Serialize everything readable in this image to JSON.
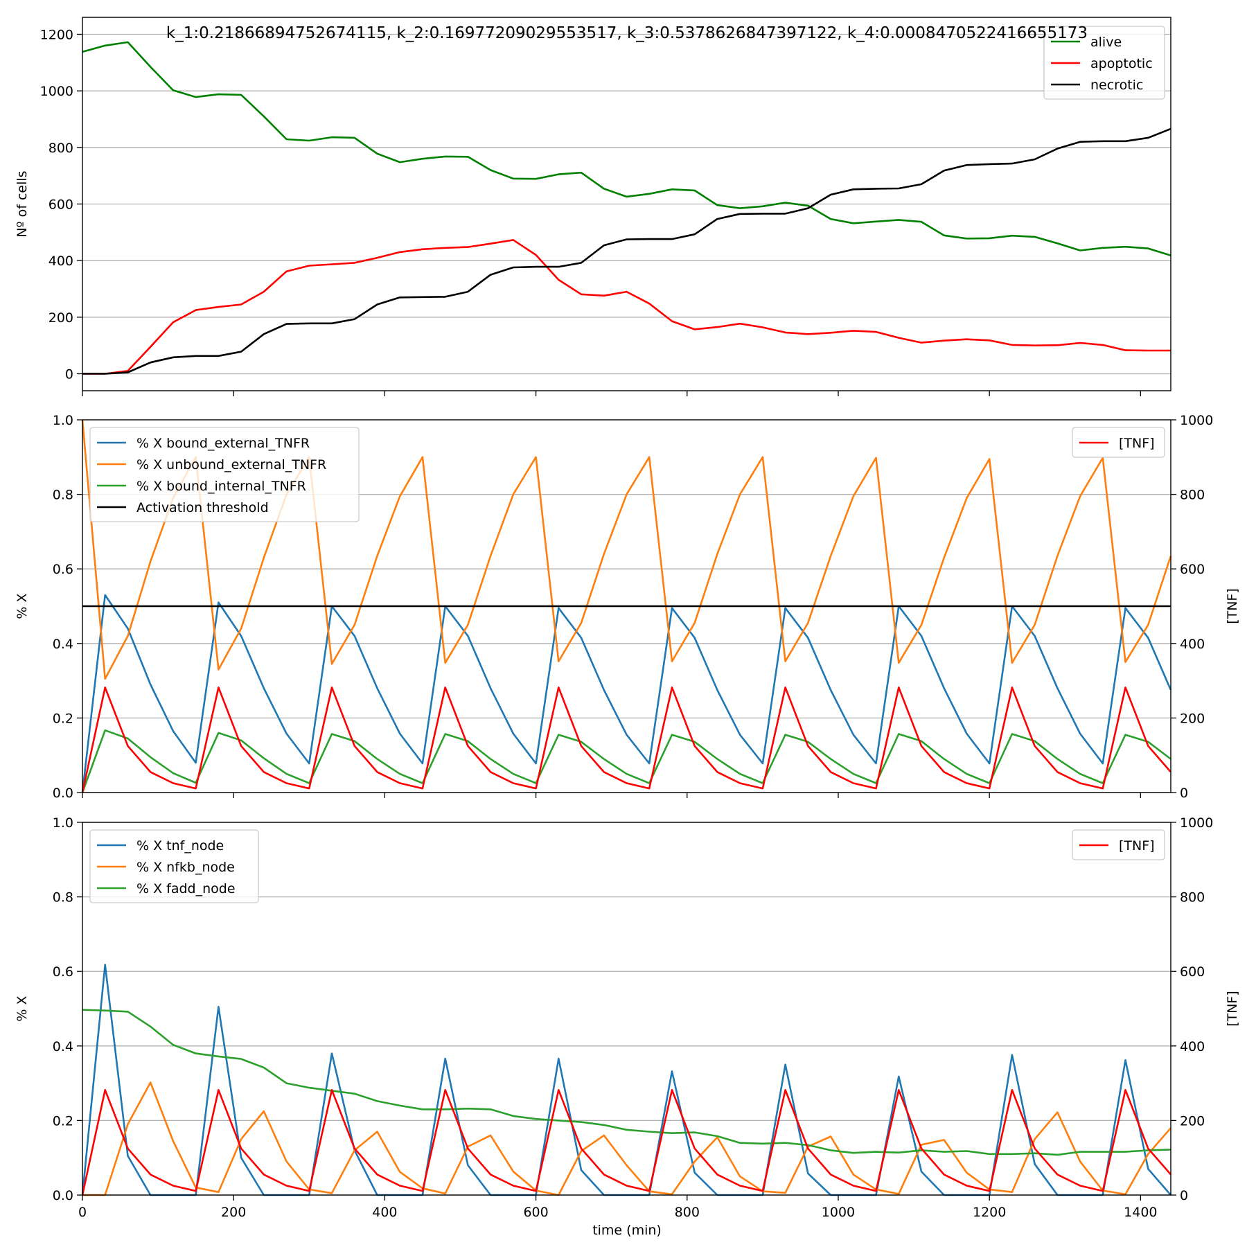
{
  "figure": {
    "suptitle": "k_1:0.21866894752674115, k_2:0.16977209029553517, k_3:0.5378626847397122, k_4:0.0008470522416655173",
    "xlabel": "time (min)",
    "x_ticks": [
      0,
      200,
      400,
      600,
      800,
      1000,
      1200,
      1400
    ],
    "xlim": [
      0,
      1440
    ]
  },
  "colors": {
    "alive": "#008000",
    "apoptotic": "#ff0000",
    "necrotic": "#000000",
    "blue": "#1f77b4",
    "orange": "#ff7f0e",
    "green": "#2ca02c",
    "tnf": "#ff0000",
    "grid": "#b0b0b0"
  },
  "chart_data": [
    {
      "type": "line",
      "ylabel": "Nº of cells",
      "ylim": [
        -60,
        1260
      ],
      "y_ticks": [
        0,
        200,
        400,
        600,
        800,
        1000,
        1200
      ],
      "grid": "y",
      "legend_position": "top-right",
      "x": [
        0,
        30,
        60,
        90,
        120,
        150,
        180,
        210,
        240,
        270,
        300,
        330,
        360,
        390,
        420,
        450,
        480,
        510,
        540,
        570,
        600,
        630,
        660,
        690,
        720,
        750,
        780,
        810,
        840,
        870,
        900,
        930,
        960,
        990,
        1020,
        1050,
        1080,
        1110,
        1140,
        1170,
        1200,
        1230,
        1260,
        1290,
        1320,
        1350,
        1380,
        1410,
        1440
      ],
      "series": [
        {
          "name": "alive",
          "color_key": "alive",
          "values": [
            1138,
            1160,
            1172,
            1085,
            1002,
            978,
            988,
            986,
            910,
            829,
            824,
            836,
            834,
            778,
            748,
            760,
            768,
            767,
            720,
            690,
            689,
            705,
            711,
            654,
            626,
            636,
            652,
            648,
            596,
            585,
            592,
            605,
            594,
            547,
            532,
            538,
            544,
            537,
            489,
            478,
            479,
            488,
            484,
            461,
            436,
            445,
            449,
            443,
            418
          ]
        },
        {
          "name": "apoptotic",
          "color_key": "apoptotic",
          "values": [
            0,
            0,
            10,
            95,
            182,
            225,
            236,
            245,
            290,
            362,
            382,
            387,
            392,
            410,
            430,
            440,
            445,
            448,
            460,
            473,
            420,
            332,
            281,
            276,
            290,
            248,
            186,
            157,
            165,
            177,
            164,
            146,
            140,
            145,
            152,
            148,
            127,
            110,
            117,
            122,
            118,
            102,
            100,
            101,
            109,
            102,
            83,
            82,
            82
          ]
        },
        {
          "name": "necrotic",
          "color_key": "necrotic",
          "values": [
            0,
            0,
            5,
            40,
            58,
            63,
            63,
            78,
            140,
            176,
            178,
            178,
            193,
            245,
            270,
            271,
            272,
            290,
            350,
            376,
            378,
            378,
            392,
            454,
            475,
            476,
            476,
            493,
            547,
            565,
            566,
            566,
            585,
            633,
            652,
            654,
            655,
            670,
            718,
            738,
            741,
            743,
            758,
            796,
            820,
            822,
            822,
            834,
            866
          ]
        }
      ]
    },
    {
      "type": "line",
      "ylabel": "% X",
      "y2label": "[TNF]",
      "ylim": [
        0,
        1
      ],
      "y2lim": [
        0,
        1000
      ],
      "y_ticks": [
        0.0,
        0.2,
        0.4,
        0.6,
        0.8,
        1.0
      ],
      "y_tick_labels": [
        "0.0",
        "0.2",
        "0.4",
        "0.6",
        "0.8",
        "1.0"
      ],
      "y2_ticks": [
        0,
        200,
        400,
        600,
        800,
        1000
      ],
      "grid": "y",
      "legend_position": "top-left",
      "legend2_position": "top-right",
      "x": [
        0,
        30,
        60,
        90,
        120,
        150,
        180,
        210,
        240,
        270,
        300,
        330,
        360,
        390,
        420,
        450,
        480,
        510,
        540,
        570,
        600,
        630,
        660,
        690,
        720,
        750,
        780,
        810,
        840,
        870,
        900,
        930,
        960,
        990,
        1020,
        1050,
        1080,
        1110,
        1140,
        1170,
        1200,
        1230,
        1260,
        1290,
        1320,
        1350,
        1380,
        1410,
        1440
      ],
      "series": [
        {
          "name": "% X bound_external_TNFR",
          "color_key": "blue",
          "axis": "left",
          "values": [
            0,
            0.53,
            0.44,
            0.29,
            0.165,
            0.08,
            0.51,
            0.42,
            0.28,
            0.158,
            0.078,
            0.5,
            0.42,
            0.28,
            0.158,
            0.078,
            0.5,
            0.42,
            0.28,
            0.158,
            0.078,
            0.495,
            0.415,
            0.275,
            0.155,
            0.078,
            0.495,
            0.415,
            0.275,
            0.155,
            0.078,
            0.495,
            0.415,
            0.275,
            0.155,
            0.078,
            0.5,
            0.42,
            0.28,
            0.158,
            0.078,
            0.5,
            0.42,
            0.28,
            0.158,
            0.078,
            0.495,
            0.415,
            0.275
          ]
        },
        {
          "name": "% X unbound_external_TNFR",
          "color_key": "orange",
          "axis": "left",
          "values": [
            1.0,
            0.305,
            0.42,
            0.62,
            0.79,
            0.9,
            0.33,
            0.44,
            0.63,
            0.8,
            0.9,
            0.345,
            0.45,
            0.635,
            0.795,
            0.9,
            0.348,
            0.45,
            0.635,
            0.8,
            0.9,
            0.352,
            0.455,
            0.64,
            0.8,
            0.9,
            0.352,
            0.455,
            0.64,
            0.8,
            0.9,
            0.352,
            0.455,
            0.635,
            0.795,
            0.898,
            0.348,
            0.45,
            0.63,
            0.79,
            0.895,
            0.348,
            0.45,
            0.635,
            0.795,
            0.898,
            0.35,
            0.45,
            0.635
          ]
        },
        {
          "name": "% X bound_internal_TNFR",
          "color_key": "green",
          "axis": "left",
          "values": [
            0,
            0.167,
            0.145,
            0.095,
            0.052,
            0.026,
            0.16,
            0.14,
            0.092,
            0.05,
            0.025,
            0.157,
            0.138,
            0.09,
            0.05,
            0.025,
            0.157,
            0.138,
            0.09,
            0.05,
            0.025,
            0.155,
            0.136,
            0.09,
            0.05,
            0.025,
            0.155,
            0.136,
            0.09,
            0.05,
            0.025,
            0.155,
            0.136,
            0.09,
            0.05,
            0.025,
            0.157,
            0.138,
            0.09,
            0.05,
            0.025,
            0.157,
            0.138,
            0.09,
            0.05,
            0.025,
            0.155,
            0.136,
            0.09
          ]
        },
        {
          "name": "Activation threshold",
          "color_key": "necrotic",
          "axis": "left",
          "constant": 0.5
        },
        {
          "name": "[TNF]",
          "color_key": "tnf",
          "axis": "right",
          "values": [
            0,
            282,
            125,
            55,
            25,
            11,
            282,
            125,
            55,
            25,
            11,
            282,
            125,
            55,
            25,
            11,
            282,
            125,
            55,
            25,
            11,
            282,
            125,
            55,
            25,
            11,
            282,
            125,
            55,
            25,
            11,
            282,
            125,
            55,
            25,
            11,
            282,
            125,
            55,
            25,
            11,
            282,
            125,
            55,
            25,
            11,
            282,
            125,
            55
          ]
        }
      ]
    },
    {
      "type": "line",
      "ylabel": "% X",
      "y2label": "[TNF]",
      "ylim": [
        0,
        1
      ],
      "y2lim": [
        0,
        1000
      ],
      "y_ticks": [
        0.0,
        0.2,
        0.4,
        0.6,
        0.8,
        1.0
      ],
      "y_tick_labels": [
        "0.0",
        "0.2",
        "0.4",
        "0.6",
        "0.8",
        "1.0"
      ],
      "y2_ticks": [
        0,
        200,
        400,
        600,
        800,
        1000
      ],
      "grid": "y",
      "legend_position": "top-left",
      "legend2_position": "top-right",
      "x": [
        0,
        30,
        60,
        90,
        120,
        150,
        180,
        210,
        240,
        270,
        300,
        330,
        360,
        390,
        420,
        450,
        480,
        510,
        540,
        570,
        600,
        630,
        660,
        690,
        720,
        750,
        780,
        810,
        840,
        870,
        900,
        930,
        960,
        990,
        1020,
        1050,
        1080,
        1110,
        1140,
        1170,
        1200,
        1230,
        1260,
        1290,
        1320,
        1350,
        1380,
        1410,
        1440
      ],
      "series": [
        {
          "name": "% X tnf_node",
          "color_key": "blue",
          "axis": "left",
          "values": [
            0,
            0.618,
            0.105,
            0,
            0,
            0,
            0.505,
            0.1,
            0,
            0,
            0,
            0.38,
            0.12,
            0,
            0,
            0,
            0.366,
            0.08,
            0,
            0,
            0,
            0.366,
            0.067,
            0,
            0,
            0,
            0.332,
            0.06,
            0,
            0,
            0,
            0.35,
            0.058,
            0,
            0,
            0,
            0.318,
            0.063,
            0,
            0,
            0,
            0.376,
            0.083,
            0,
            0,
            0,
            0.362,
            0.07,
            0
          ]
        },
        {
          "name": "% X nfkb_node",
          "color_key": "orange",
          "axis": "left",
          "values": [
            0,
            0,
            0.19,
            0.302,
            0.145,
            0.02,
            0.008,
            0.15,
            0.225,
            0.09,
            0.015,
            0.005,
            0.12,
            0.17,
            0.062,
            0.018,
            0.004,
            0.13,
            0.16,
            0.063,
            0.012,
            0,
            0.118,
            0.16,
            0.08,
            0.01,
            0.002,
            0.09,
            0.155,
            0.05,
            0.01,
            0.006,
            0.13,
            0.157,
            0.055,
            0.015,
            0.003,
            0.135,
            0.148,
            0.06,
            0.015,
            0.008,
            0.15,
            0.222,
            0.09,
            0.012,
            0.002,
            0.11,
            0.18
          ]
        },
        {
          "name": "% X fadd_node",
          "color_key": "green",
          "axis": "left",
          "values": [
            0.497,
            0.495,
            0.492,
            0.452,
            0.403,
            0.38,
            0.372,
            0.365,
            0.342,
            0.3,
            0.288,
            0.28,
            0.272,
            0.252,
            0.24,
            0.23,
            0.23,
            0.232,
            0.23,
            0.212,
            0.204,
            0.2,
            0.196,
            0.188,
            0.175,
            0.17,
            0.166,
            0.168,
            0.158,
            0.14,
            0.138,
            0.14,
            0.134,
            0.12,
            0.113,
            0.116,
            0.114,
            0.12,
            0.116,
            0.118,
            0.11,
            0.11,
            0.112,
            0.108,
            0.116,
            0.116,
            0.116,
            0.12,
            0.122
          ]
        },
        {
          "name": "[TNF]",
          "color_key": "tnf",
          "axis": "right",
          "values": [
            0,
            282,
            125,
            55,
            25,
            11,
            282,
            125,
            55,
            25,
            11,
            282,
            125,
            55,
            25,
            11,
            282,
            125,
            55,
            25,
            11,
            282,
            125,
            55,
            25,
            11,
            282,
            125,
            55,
            25,
            11,
            282,
            125,
            55,
            25,
            11,
            282,
            125,
            55,
            25,
            11,
            282,
            125,
            55,
            25,
            11,
            282,
            125,
            55
          ]
        }
      ]
    }
  ]
}
